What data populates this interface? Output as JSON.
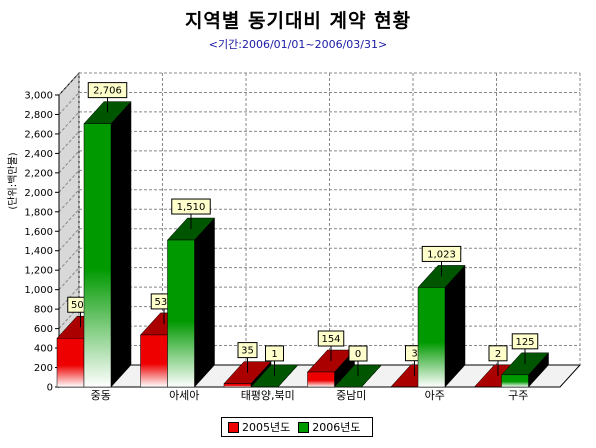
{
  "header": {
    "title": "지역별 동기대비 계약 현황",
    "subtitle": "<기간:2006/01/01~2006/03/31>"
  },
  "chart_data": {
    "type": "bar",
    "categories": [
      "중동",
      "아세아",
      "태평양,북미",
      "중남미",
      "아주",
      "구주"
    ],
    "series": [
      {
        "name": "2005년도",
        "values": [
          501,
          535,
          35,
          154,
          3,
          2
        ],
        "color": "#cc0000"
      },
      {
        "name": "2006년도",
        "values": [
          2706,
          1510,
          1,
          0,
          1023,
          125
        ],
        "color": "#007700"
      }
    ],
    "value_labels": [
      [
        "501",
        "535",
        "35",
        "154",
        "3",
        "2"
      ],
      [
        "2,706",
        "1,510",
        "1",
        "0",
        "1,023",
        "125"
      ]
    ],
    "ylabel": "(단위:백만불)",
    "ylim": [
      0,
      3000
    ],
    "yticks": [
      0,
      200,
      400,
      600,
      800,
      1000,
      1200,
      1400,
      1600,
      1800,
      2000,
      2200,
      2400,
      2600,
      2800,
      3000
    ],
    "ytick_labels": [
      "0",
      "200",
      "400",
      "600",
      "800",
      "1,000",
      "1,200",
      "1,400",
      "1,600",
      "1,800",
      "2,000",
      "2,200",
      "2,400",
      "2,600",
      "2,800",
      "3,000"
    ],
    "grid": true,
    "legend_position": "bottom"
  }
}
